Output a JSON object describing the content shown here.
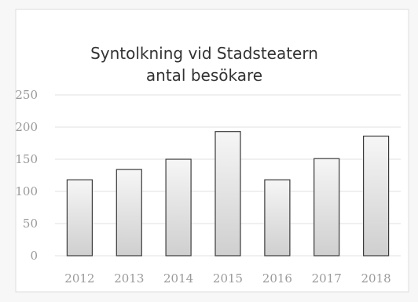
{
  "chart_data": {
    "type": "bar",
    "title_lines": [
      "Syntolkning vid Stadsteatern",
      "antal besökare"
    ],
    "categories": [
      "2012",
      "2013",
      "2014",
      "2015",
      "2016",
      "2017",
      "2018"
    ],
    "values": [
      118,
      134,
      150,
      193,
      118,
      151,
      186
    ],
    "xlabel": "",
    "ylabel": "",
    "ylim": [
      0,
      250
    ],
    "yticks": [
      "0",
      "50",
      "100",
      "150",
      "200",
      "250"
    ],
    "grid": true,
    "legend": "none",
    "colors": {
      "bar_top": "#f6f6f6",
      "bar_bottom": "#cfcfcf",
      "bar_stroke": "#3a3a3a",
      "grid": "#e2e2e2",
      "background": "#ffffff",
      "page": "#f7f7f7"
    }
  }
}
